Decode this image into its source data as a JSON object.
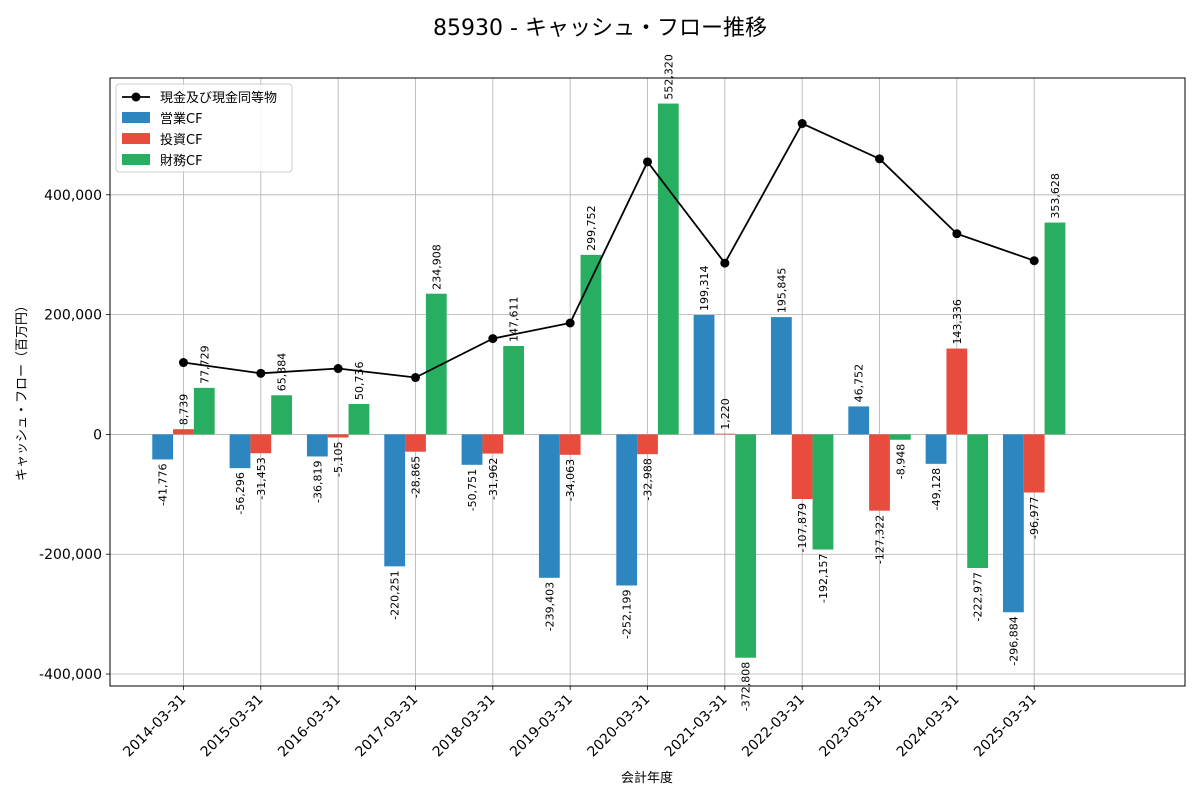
{
  "chart_data": {
    "type": "bar",
    "title": "85930 - キャッシュ・フロー推移",
    "xlabel": "会計年度",
    "ylabel": "キャッシュ・フロー（百万円）",
    "ylim": [
      -420000,
      595000
    ],
    "yticks": [
      -400000,
      -200000,
      0,
      200000,
      400000
    ],
    "grid": true,
    "legend_position": "top-left",
    "categories": [
      "2014-03-31",
      "2015-03-31",
      "2016-03-31",
      "2017-03-31",
      "2018-03-31",
      "2019-03-31",
      "2020-03-31",
      "2021-03-31",
      "2022-03-31",
      "2023-03-31",
      "2024-03-31",
      "2025-03-31"
    ],
    "series": [
      {
        "name": "営業CF",
        "kind": "bar",
        "color": "#2e86c1",
        "values": [
          -41776,
          -56296,
          -36819,
          -220251,
          -50751,
          -239403,
          -252199,
          199314,
          195845,
          46752,
          -49128,
          -296884
        ]
      },
      {
        "name": "投資CF",
        "kind": "bar",
        "color": "#e74c3c",
        "values": [
          8739,
          -31453,
          -5105,
          -28865,
          -31962,
          -34063,
          -32988,
          1220,
          -107879,
          -127322,
          143336,
          -96977
        ]
      },
      {
        "name": "財務CF",
        "kind": "bar",
        "color": "#27ae60",
        "values": [
          77729,
          65384,
          50736,
          234908,
          147611,
          299752,
          552320,
          -372808,
          -192157,
          -8948,
          -222977,
          353628
        ]
      },
      {
        "name": "現金及び現金同等物",
        "kind": "line",
        "color": "#000000",
        "values": [
          120000,
          102000,
          110000,
          95000,
          160000,
          186000,
          455000,
          286000,
          519000,
          460000,
          335000,
          290000
        ]
      }
    ]
  }
}
